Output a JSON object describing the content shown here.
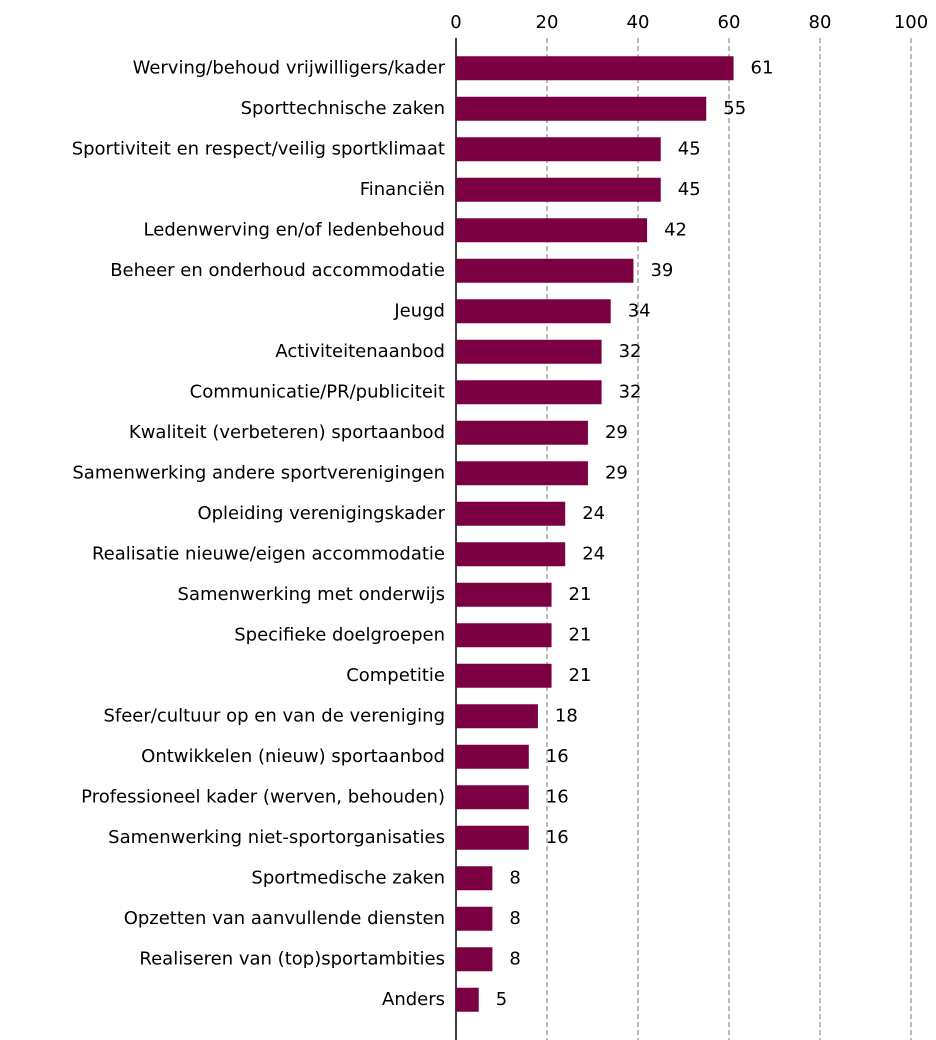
{
  "chart_data": {
    "type": "barh",
    "categories": [
      "Werving/behoud vrijwilligers/kader",
      "Sporttechnische zaken",
      "Sportiviteit en respect/veilig sportklimaat",
      "Financiën",
      "Ledenwerving en/of ledenbehoud",
      "Beheer en onderhoud accommodatie",
      "Jeugd",
      "Activiteitenaanbod",
      "Communicatie/PR/publiciteit",
      "Kwaliteit (verbeteren) sportaanbod",
      "Samenwerking andere sportverenigingen",
      "Opleiding verenigingskader",
      "Realisatie nieuwe/eigen accommodatie",
      "Samenwerking met onderwijs",
      "Specifieke doelgroepen",
      "Competitie",
      "Sfeer/cultuur op en van de vereniging",
      "Ontwikkelen (nieuw) sportaanbod",
      "Professioneel kader (werven, behouden)",
      "Samenwerking niet-sportorganisaties",
      "Sportmedische zaken",
      "Opzetten van aanvullende diensten",
      "Realiseren van (top)sportambities",
      "Anders"
    ],
    "values": [
      61,
      55,
      45,
      45,
      42,
      39,
      34,
      32,
      32,
      29,
      29,
      24,
      24,
      21,
      21,
      21,
      18,
      16,
      16,
      16,
      8,
      8,
      8,
      5
    ],
    "color": "#7b0041",
    "xlim": [
      0,
      100
    ],
    "xticks": [
      0,
      20,
      40,
      60,
      80,
      100
    ],
    "grid": true
  }
}
